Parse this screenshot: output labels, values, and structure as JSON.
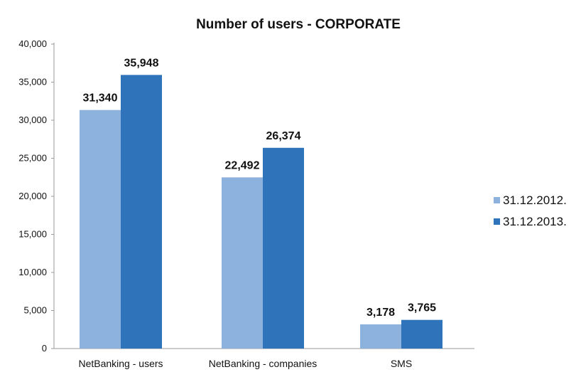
{
  "chart_data": {
    "type": "bar",
    "title": "Number of users - CORPORATE",
    "categories": [
      "NetBanking - users",
      "NetBanking - companies",
      "SMS"
    ],
    "series": [
      {
        "name": "31.12.2012.",
        "values": [
          31340,
          22492,
          3178
        ],
        "labels": [
          "31,340",
          "22,492",
          "3,178"
        ],
        "color": "#8DB2DE"
      },
      {
        "name": "31.12.2013.",
        "values": [
          35948,
          26374,
          3765
        ],
        "labels": [
          "35,948",
          "26,374",
          "3,765"
        ],
        "color": "#2F73BA"
      }
    ],
    "yticks": [
      "0",
      "5,000",
      "10,000",
      "15,000",
      "20,000",
      "25,000",
      "30,000",
      "35,000",
      "40,000"
    ],
    "ylim": [
      0,
      40000
    ],
    "grid": false,
    "legend_position": "right"
  }
}
